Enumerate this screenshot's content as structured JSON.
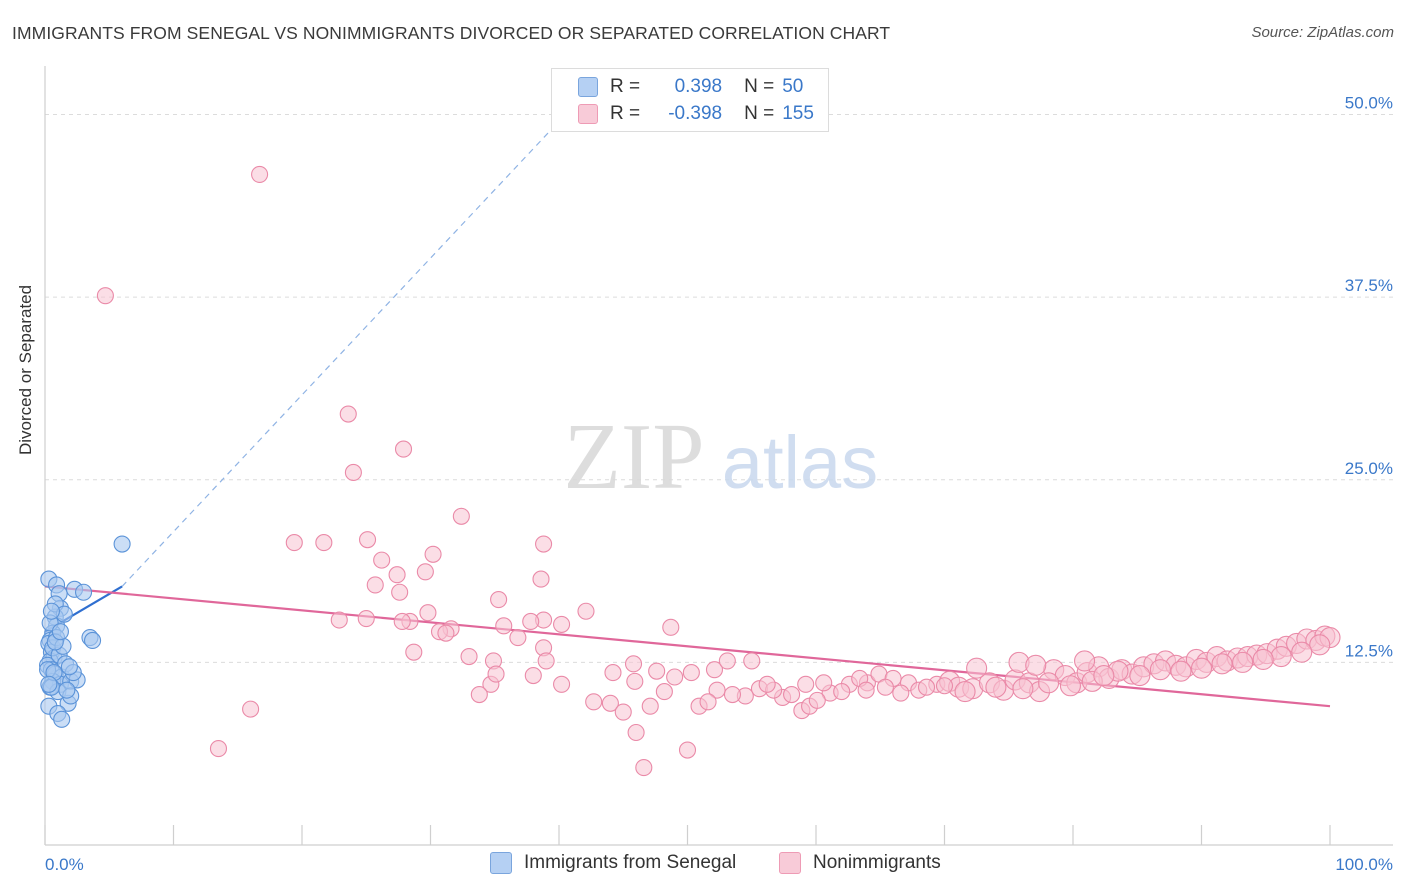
{
  "header": {
    "title": "IMMIGRANTS FROM SENEGAL VS NONIMMIGRANTS DIVORCED OR SEPARATED CORRELATION CHART",
    "source": "Source: ZipAtlas.com"
  },
  "watermark": {
    "zip": "ZIP",
    "atlas": "atlas"
  },
  "colors": {
    "blue_fill": "#a9c8f0",
    "blue_stroke": "#5b93d8",
    "blue_line": "#2f6fd0",
    "pink_fill": "#f7c3d2",
    "pink_stroke": "#ea8aa8",
    "pink_line": "#e0679a",
    "axis_text": "#3a78c9",
    "grid": "#dcdcdc"
  },
  "legend": {
    "rows": [
      {
        "r_label": "R =",
        "r_value": "0.398",
        "n_label": "N =",
        "n_value": "50",
        "color": "blue"
      },
      {
        "r_label": "R =",
        "r_value": "-0.398",
        "n_label": "N =",
        "n_value": "155",
        "color": "pink"
      }
    ]
  },
  "bottom_legend": [
    {
      "label": "Immigrants from Senegal",
      "color": "blue"
    },
    {
      "label": "Nonimmigrants",
      "color": "pink"
    }
  ],
  "chart_data": {
    "type": "scatter",
    "title": "IMMIGRANTS FROM SENEGAL VS NONIMMIGRANTS DIVORCED OR SEPARATED CORRELATION CHART",
    "xlabel": "",
    "ylabel": "Divorced or Separated",
    "xlim": [
      0,
      100
    ],
    "ylim": [
      0,
      52.5
    ],
    "x_tick_labels": [
      "0.0%",
      "100.0%"
    ],
    "y_ticks": [
      12.5,
      25.0,
      37.5,
      50.0
    ],
    "y_tick_labels": [
      "12.5%",
      "25.0%",
      "37.5%",
      "50.0%"
    ],
    "grid": true,
    "legend_position": "top-center",
    "series": [
      {
        "name": "Immigrants from Senegal",
        "color": "blue",
        "points": [
          [
            0.3,
            18.2
          ],
          [
            0.9,
            17.8
          ],
          [
            1.1,
            17.2
          ],
          [
            1.2,
            16.2
          ],
          [
            0.8,
            15.6
          ],
          [
            0.9,
            15.0
          ],
          [
            0.6,
            14.5
          ],
          [
            0.4,
            14.0
          ],
          [
            0.3,
            13.8
          ],
          [
            0.5,
            13.2
          ],
          [
            0.7,
            12.8
          ],
          [
            0.4,
            12.6
          ],
          [
            0.2,
            12.3
          ],
          [
            0.5,
            12.0
          ],
          [
            0.8,
            11.7
          ],
          [
            1.3,
            11.5
          ],
          [
            0.6,
            11.2
          ],
          [
            1.2,
            11.0
          ],
          [
            2.0,
            11.2
          ],
          [
            2.5,
            11.3
          ],
          [
            0.4,
            10.8
          ],
          [
            1.0,
            10.5
          ],
          [
            1.8,
            9.7
          ],
          [
            2.0,
            10.2
          ],
          [
            0.5,
            10.8
          ],
          [
            0.3,
            9.5
          ],
          [
            1.0,
            9.0
          ],
          [
            1.3,
            8.6
          ],
          [
            0.8,
            16.5
          ],
          [
            1.5,
            15.8
          ],
          [
            2.3,
            17.5
          ],
          [
            3.0,
            17.3
          ],
          [
            3.5,
            14.2
          ],
          [
            3.7,
            14.0
          ],
          [
            6.0,
            20.6
          ],
          [
            0.6,
            13.5
          ],
          [
            1.1,
            13.0
          ],
          [
            1.6,
            12.4
          ],
          [
            0.9,
            14.2
          ],
          [
            0.2,
            12.0
          ],
          [
            1.4,
            13.6
          ],
          [
            0.7,
            11.8
          ],
          [
            2.2,
            11.8
          ],
          [
            0.4,
            15.2
          ],
          [
            1.7,
            10.6
          ],
          [
            0.8,
            13.9
          ],
          [
            1.9,
            12.2
          ],
          [
            0.5,
            16.0
          ],
          [
            1.2,
            14.6
          ],
          [
            0.3,
            11.0
          ]
        ]
      },
      {
        "name": "Nonimmigrants",
        "color": "pink",
        "points": [
          [
            16.7,
            45.9
          ],
          [
            4.7,
            37.6
          ],
          [
            23.6,
            29.5
          ],
          [
            27.9,
            27.1
          ],
          [
            24.0,
            25.5
          ],
          [
            32.4,
            22.5
          ],
          [
            19.4,
            20.7
          ],
          [
            21.7,
            20.7
          ],
          [
            25.1,
            20.9
          ],
          [
            26.2,
            19.5
          ],
          [
            30.2,
            19.9
          ],
          [
            38.8,
            20.6
          ],
          [
            27.4,
            18.5
          ],
          [
            29.6,
            18.7
          ],
          [
            25.7,
            17.8
          ],
          [
            27.6,
            17.3
          ],
          [
            38.6,
            18.2
          ],
          [
            35.3,
            16.8
          ],
          [
            42.1,
            16.0
          ],
          [
            25.0,
            15.5
          ],
          [
            29.8,
            15.9
          ],
          [
            28.4,
            15.3
          ],
          [
            27.8,
            15.3
          ],
          [
            38.8,
            15.4
          ],
          [
            40.2,
            15.1
          ],
          [
            31.6,
            14.8
          ],
          [
            35.7,
            15.0
          ],
          [
            37.8,
            15.3
          ],
          [
            36.8,
            14.2
          ],
          [
            48.7,
            14.9
          ],
          [
            30.7,
            14.6
          ],
          [
            31.2,
            14.5
          ],
          [
            38.8,
            13.5
          ],
          [
            28.7,
            13.2
          ],
          [
            22.9,
            15.4
          ],
          [
            16.0,
            9.3
          ],
          [
            33.0,
            12.9
          ],
          [
            34.9,
            12.6
          ],
          [
            39.0,
            12.6
          ],
          [
            38.0,
            11.6
          ],
          [
            44.2,
            11.8
          ],
          [
            45.8,
            12.4
          ],
          [
            40.2,
            11.0
          ],
          [
            45.9,
            11.2
          ],
          [
            47.6,
            11.9
          ],
          [
            49.0,
            11.5
          ],
          [
            50.3,
            11.8
          ],
          [
            52.1,
            12.0
          ],
          [
            53.1,
            12.6
          ],
          [
            34.7,
            11.0
          ],
          [
            33.8,
            10.3
          ],
          [
            35.1,
            11.7
          ],
          [
            42.7,
            9.8
          ],
          [
            47.1,
            9.5
          ],
          [
            44.0,
            9.7
          ],
          [
            45.0,
            9.1
          ],
          [
            48.2,
            10.5
          ],
          [
            50.9,
            9.5
          ],
          [
            52.3,
            10.6
          ],
          [
            55.6,
            10.7
          ],
          [
            57.4,
            10.1
          ],
          [
            56.7,
            10.6
          ],
          [
            59.2,
            11.0
          ],
          [
            61.1,
            10.4
          ],
          [
            62.6,
            11.0
          ],
          [
            64.0,
            11.1
          ],
          [
            58.9,
            9.2
          ],
          [
            59.5,
            9.5
          ],
          [
            60.1,
            9.9
          ],
          [
            63.4,
            11.4
          ],
          [
            64.9,
            11.7
          ],
          [
            66.0,
            11.4
          ],
          [
            67.2,
            11.1
          ],
          [
            68.0,
            10.6
          ],
          [
            69.4,
            11.0
          ],
          [
            70.4,
            11.2
          ],
          [
            71.1,
            10.8
          ],
          [
            72.2,
            10.7
          ],
          [
            73.5,
            11.1
          ],
          [
            74.6,
            10.6
          ],
          [
            75.5,
            11.3
          ],
          [
            76.6,
            11.1
          ],
          [
            77.4,
            10.5
          ],
          [
            78.5,
            12.0
          ],
          [
            79.4,
            11.6
          ],
          [
            80.3,
            11.1
          ],
          [
            81.1,
            11.8
          ],
          [
            82.0,
            12.2
          ],
          [
            82.8,
            11.4
          ],
          [
            83.8,
            12.0
          ],
          [
            84.6,
            11.7
          ],
          [
            85.5,
            12.2
          ],
          [
            86.3,
            12.4
          ],
          [
            87.2,
            12.6
          ],
          [
            88.0,
            12.3
          ],
          [
            88.8,
            12.2
          ],
          [
            89.6,
            12.7
          ],
          [
            90.4,
            12.5
          ],
          [
            91.2,
            12.9
          ],
          [
            92.0,
            12.6
          ],
          [
            92.8,
            12.8
          ],
          [
            93.6,
            12.9
          ],
          [
            94.3,
            13.0
          ],
          [
            95.1,
            13.1
          ],
          [
            95.9,
            13.4
          ],
          [
            96.6,
            13.6
          ],
          [
            97.4,
            13.8
          ],
          [
            98.2,
            14.1
          ],
          [
            98.9,
            14.0
          ],
          [
            99.6,
            14.3
          ],
          [
            100.0,
            14.2
          ],
          [
            99.2,
            13.7
          ],
          [
            97.8,
            13.2
          ],
          [
            96.2,
            12.9
          ],
          [
            94.8,
            12.7
          ],
          [
            93.2,
            12.5
          ],
          [
            91.6,
            12.4
          ],
          [
            90.0,
            12.1
          ],
          [
            88.4,
            11.9
          ],
          [
            86.8,
            12.0
          ],
          [
            85.2,
            11.6
          ],
          [
            83.5,
            11.9
          ],
          [
            81.5,
            11.2
          ],
          [
            79.8,
            10.9
          ],
          [
            78.1,
            11.1
          ],
          [
            76.1,
            10.7
          ],
          [
            74.0,
            10.8
          ],
          [
            71.6,
            10.5
          ],
          [
            70.0,
            10.9
          ],
          [
            68.6,
            10.8
          ],
          [
            66.6,
            10.4
          ],
          [
            65.4,
            10.8
          ],
          [
            63.9,
            10.6
          ],
          [
            62.0,
            10.5
          ],
          [
            60.6,
            11.1
          ],
          [
            58.1,
            10.3
          ],
          [
            56.2,
            11.0
          ],
          [
            54.5,
            10.2
          ],
          [
            53.5,
            10.3
          ],
          [
            51.6,
            9.8
          ],
          [
            13.5,
            6.6
          ],
          [
            46.6,
            5.3
          ],
          [
            50.0,
            6.5
          ],
          [
            46.0,
            7.7
          ],
          [
            55.0,
            12.6
          ],
          [
            72.5,
            12.1
          ],
          [
            75.8,
            12.5
          ],
          [
            77.1,
            12.3
          ],
          [
            80.9,
            12.6
          ],
          [
            82.4,
            11.6
          ]
        ]
      }
    ],
    "trend_lines": [
      {
        "series": "Immigrants from Senegal",
        "x0": 0.0,
        "y0": 14.6,
        "x1": 6.0,
        "y1": 17.7,
        "extends_to": [
          40.5,
          50.0
        ],
        "extension_style": "dashed"
      },
      {
        "series": "Nonimmigrants",
        "x0": 0.0,
        "y0": 17.7,
        "x1": 100.0,
        "y1": 9.5
      }
    ]
  }
}
